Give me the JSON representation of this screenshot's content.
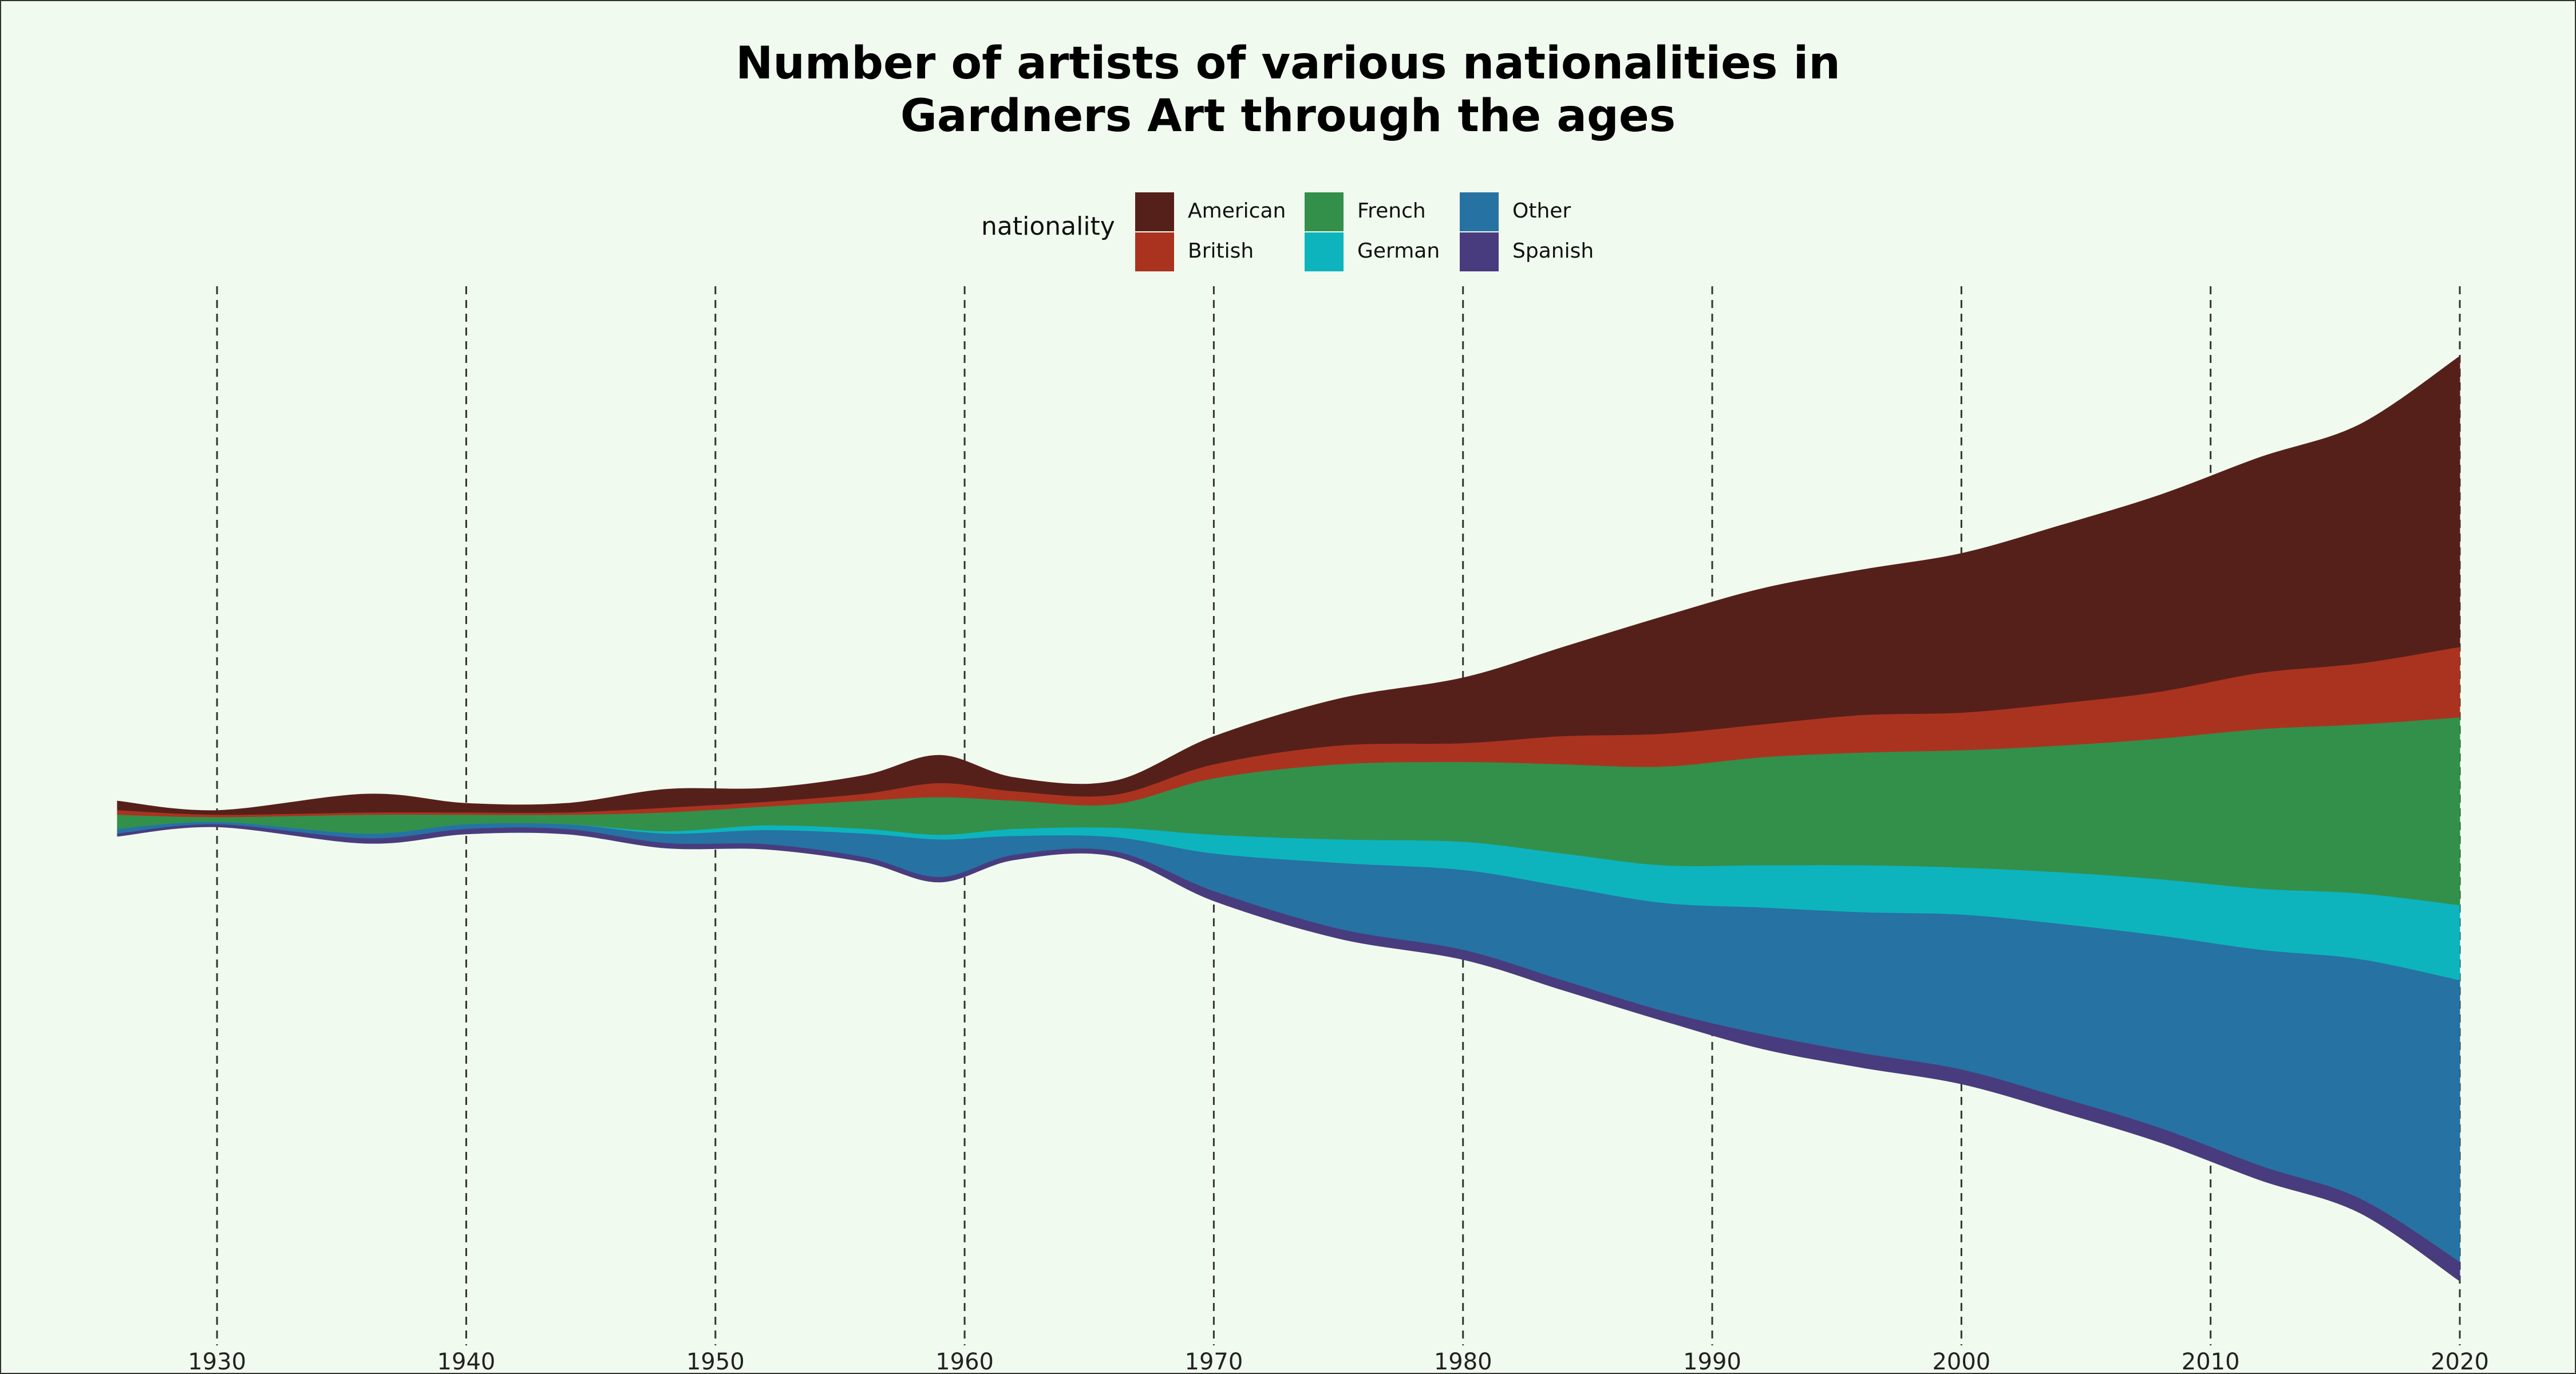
{
  "chart_data": {
    "type": "area",
    "layout": "streamgraph",
    "title": "Number of artists of various nationalities in Gardners Art through the ages",
    "title_lines": [
      "Number of artists of various nationalities in",
      "Gardners Art through the ages"
    ],
    "xlabel": "",
    "ylabel": "",
    "legend_title": "nationality",
    "legend_placement": "top-center",
    "grid": "vertical dashed lines at x ticks",
    "xlim": [
      1926,
      2020
    ],
    "x_ticks": [
      1930,
      1940,
      1950,
      1960,
      1970,
      1980,
      1990,
      2000,
      2010,
      2020
    ],
    "x": [
      1926,
      1930,
      1936,
      1940,
      1944,
      1948,
      1952,
      1956,
      1959,
      1962,
      1966,
      1970,
      1975,
      1980,
      1984,
      1988,
      1992,
      1996,
      2000,
      2004,
      2008,
      2012,
      2016,
      2020
    ],
    "series": [
      {
        "name": "American",
        "color": "#56201a",
        "values": [
          2,
          1,
          4,
          2,
          2,
          4,
          3,
          4,
          6,
          3,
          3,
          6,
          10,
          14,
          19,
          25,
          29,
          31,
          34,
          38,
          42,
          46,
          51,
          62
        ]
      },
      {
        "name": "British",
        "color": "#aa3320",
        "values": [
          1,
          0.5,
          0.5,
          0.5,
          0.5,
          1,
          1,
          1.5,
          3,
          2,
          2,
          3,
          4,
          4,
          6,
          7,
          7,
          8,
          8,
          9,
          10,
          12,
          13,
          15
        ]
      },
      {
        "name": "French",
        "color": "#32904b",
        "values": [
          3,
          1,
          4,
          2,
          2,
          4,
          4,
          6,
          8,
          6,
          5,
          12,
          16,
          17,
          19,
          21,
          23,
          24,
          25,
          27,
          30,
          34,
          36,
          40
        ]
      },
      {
        "name": "German",
        "color": "#0db4bd",
        "values": [
          0,
          0,
          0,
          0,
          0,
          0.5,
          1,
          1,
          1,
          1.5,
          2,
          4,
          5,
          6,
          7,
          8,
          9,
          10,
          10,
          11,
          12,
          13,
          14,
          16
        ]
      },
      {
        "name": "Other",
        "color": "#2672a3",
        "values": [
          1,
          0.5,
          1,
          1,
          1,
          2,
          3,
          5,
          8,
          4,
          3,
          8,
          14,
          17,
          20,
          23,
          27,
          30,
          33,
          37,
          41,
          46,
          51,
          60
        ]
      },
      {
        "name": "Spanish",
        "color": "#483c7e",
        "values": [
          0.5,
          0.5,
          1,
          1,
          1,
          1,
          1,
          1,
          1,
          1,
          1,
          2,
          2,
          2,
          2,
          2,
          3,
          3,
          3,
          3,
          3,
          3,
          3,
          4
        ]
      }
    ]
  }
}
